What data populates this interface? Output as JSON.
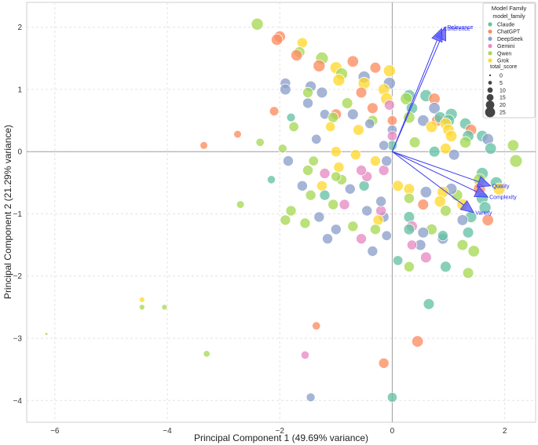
{
  "chart_data": {
    "type": "scatter",
    "xlabel": "Principal Component 1 (49.69% variance)",
    "ylabel": "Principal Component 2 (21.29% variance)",
    "xlim": [
      -6.5,
      2.55
    ],
    "ylim": [
      -4.35,
      2.4
    ],
    "xticks": [
      -6,
      -4,
      -2,
      0,
      2
    ],
    "yticks": [
      -4,
      -3,
      -2,
      -1,
      0,
      1,
      2
    ],
    "grid": true,
    "legend": {
      "title": "Model Family",
      "placement": "top-right",
      "hue_header": "model_family",
      "size_header": "total_score",
      "families": [
        {
          "name": "Claude",
          "color": "#66c2a5"
        },
        {
          "name": "ChatGPT",
          "color": "#fc8d62"
        },
        {
          "name": "DeepSeek",
          "color": "#8da0cb"
        },
        {
          "name": "Gemini",
          "color": "#e78ac3"
        },
        {
          "name": "Qwen",
          "color": "#a6d854"
        },
        {
          "name": "Grok",
          "color": "#ffd92f"
        }
      ],
      "sizes": [
        "0",
        "5",
        "10",
        "15",
        "20",
        "25"
      ]
    },
    "loadings": [
      {
        "name": "Relevance",
        "x": 0.95,
        "y": 2.0
      },
      {
        "name": "Coherence",
        "x": 0.88,
        "y": 1.98
      },
      {
        "name": "Quality",
        "x": 1.75,
        "y": -0.55
      },
      {
        "name": "Complexity",
        "x": 1.7,
        "y": -0.73
      },
      {
        "name": "Variety",
        "x": 1.45,
        "y": -0.98
      }
    ],
    "points": [
      {
        "x": -2.4,
        "y": 2.05,
        "f": "Qwen",
        "s": 18
      },
      {
        "x": -2.0,
        "y": 1.85,
        "f": "ChatGPT",
        "s": 17
      },
      {
        "x": -2.05,
        "y": 1.8,
        "f": "ChatGPT",
        "s": 17
      },
      {
        "x": -1.6,
        "y": 1.75,
        "f": "Grok",
        "s": 15
      },
      {
        "x": -1.65,
        "y": 1.6,
        "f": "Qwen",
        "s": 16
      },
      {
        "x": -1.7,
        "y": 1.55,
        "f": "ChatGPT",
        "s": 17
      },
      {
        "x": -1.25,
        "y": 1.5,
        "f": "Qwen",
        "s": 19
      },
      {
        "x": -1.3,
        "y": 1.38,
        "f": "ChatGPT",
        "s": 18
      },
      {
        "x": -1.0,
        "y": 1.35,
        "f": "Grok",
        "s": 18
      },
      {
        "x": -0.7,
        "y": 1.45,
        "f": "ChatGPT",
        "s": 17
      },
      {
        "x": -0.5,
        "y": 1.2,
        "f": "DeepSeek",
        "s": 18
      },
      {
        "x": -0.9,
        "y": 1.25,
        "f": "Qwen",
        "s": 18
      },
      {
        "x": -0.05,
        "y": 1.3,
        "f": "Grok",
        "s": 18
      },
      {
        "x": -0.3,
        "y": 1.35,
        "f": "ChatGPT",
        "s": 16
      },
      {
        "x": -1.45,
        "y": 1.05,
        "f": "DeepSeek",
        "s": 16
      },
      {
        "x": -1.9,
        "y": 1.1,
        "f": "DeepSeek",
        "s": 15
      },
      {
        "x": -1.5,
        "y": 0.95,
        "f": "Qwen",
        "s": 15
      },
      {
        "x": -1.25,
        "y": 0.95,
        "f": "DeepSeek",
        "s": 16
      },
      {
        "x": -0.95,
        "y": 1.15,
        "f": "Grok",
        "s": 18
      },
      {
        "x": -0.5,
        "y": 1.1,
        "f": "Grok",
        "s": 18
      },
      {
        "x": -0.55,
        "y": 0.95,
        "f": "ChatGPT",
        "s": 16
      },
      {
        "x": -0.05,
        "y": 1.1,
        "f": "DeepSeek",
        "s": 18
      },
      {
        "x": -0.15,
        "y": 1.0,
        "f": "Grok",
        "s": 17
      },
      {
        "x": -0.1,
        "y": 0.85,
        "f": "Grok",
        "s": 18
      },
      {
        "x": -0.05,
        "y": 0.75,
        "f": "Gemini",
        "s": 15
      },
      {
        "x": -1.5,
        "y": 0.78,
        "f": "DeepSeek",
        "s": 15
      },
      {
        "x": -1.9,
        "y": 1.0,
        "f": "DeepSeek",
        "s": 16
      },
      {
        "x": -0.8,
        "y": 0.78,
        "f": "Qwen",
        "s": 16
      },
      {
        "x": -1.0,
        "y": 0.6,
        "f": "ChatGPT",
        "s": 16
      },
      {
        "x": -0.7,
        "y": 0.6,
        "f": "DeepSeek",
        "s": 16
      },
      {
        "x": -0.35,
        "y": 0.7,
        "f": "ChatGPT",
        "s": 16
      },
      {
        "x": -0.35,
        "y": 0.5,
        "f": "Qwen",
        "s": 15
      },
      {
        "x": -0.6,
        "y": 0.35,
        "f": "Grok",
        "s": 16
      },
      {
        "x": -1.8,
        "y": 0.55,
        "f": "Claude",
        "s": 12
      },
      {
        "x": -2.1,
        "y": 0.65,
        "f": "ChatGPT",
        "s": 13
      },
      {
        "x": -1.75,
        "y": 0.4,
        "f": "Qwen",
        "s": 14
      },
      {
        "x": -1.2,
        "y": 0.6,
        "f": "DeepSeek",
        "s": 14
      },
      {
        "x": -1.05,
        "y": 0.55,
        "f": "Qwen",
        "s": 15
      },
      {
        "x": -1.1,
        "y": 0.4,
        "f": "Grok",
        "s": 14
      },
      {
        "x": -0.4,
        "y": 0.45,
        "f": "DeepSeek",
        "s": 14
      },
      {
        "x": 0.0,
        "y": 0.5,
        "f": "ChatGPT",
        "s": 14
      },
      {
        "x": 0.0,
        "y": 0.35,
        "f": "DeepSeek",
        "s": 14
      },
      {
        "x": 0.0,
        "y": 0.25,
        "f": "Gemini",
        "s": 14
      },
      {
        "x": 0.0,
        "y": 0.1,
        "f": "Claude",
        "s": 14
      },
      {
        "x": -0.15,
        "y": 0.1,
        "f": "DeepSeek",
        "s": 14
      },
      {
        "x": 0.3,
        "y": 0.9,
        "f": "Claude",
        "s": 18
      },
      {
        "x": 0.25,
        "y": 0.85,
        "f": "Qwen",
        "s": 18
      },
      {
        "x": 0.35,
        "y": 0.7,
        "f": "Claude",
        "s": 17
      },
      {
        "x": 0.6,
        "y": 0.9,
        "f": "Claude",
        "s": 18
      },
      {
        "x": 0.75,
        "y": 0.85,
        "f": "ChatGPT",
        "s": 17
      },
      {
        "x": 0.3,
        "y": 0.55,
        "f": "Qwen",
        "s": 17
      },
      {
        "x": 0.55,
        "y": 0.5,
        "f": "DeepSeek",
        "s": 17
      },
      {
        "x": 0.75,
        "y": 0.7,
        "f": "DeepSeek",
        "s": 17
      },
      {
        "x": 0.8,
        "y": 0.5,
        "f": "ChatGPT",
        "s": 17
      },
      {
        "x": 0.85,
        "y": 0.55,
        "f": "Claude",
        "s": 17
      },
      {
        "x": 0.7,
        "y": 0.4,
        "f": "Grok",
        "s": 17
      },
      {
        "x": 1.05,
        "y": 0.6,
        "f": "Claude",
        "s": 18
      },
      {
        "x": 1.0,
        "y": 0.5,
        "f": "Claude",
        "s": 18
      },
      {
        "x": 0.95,
        "y": 0.45,
        "f": "Grok",
        "s": 17
      },
      {
        "x": 1.0,
        "y": 0.35,
        "f": "Grok",
        "s": 17
      },
      {
        "x": 1.05,
        "y": 0.25,
        "f": "Grok",
        "s": 17
      },
      {
        "x": 1.3,
        "y": 0.45,
        "f": "Claude",
        "s": 17
      },
      {
        "x": 1.4,
        "y": 0.35,
        "f": "ChatGPT",
        "s": 17
      },
      {
        "x": 1.35,
        "y": 0.25,
        "f": "Claude",
        "s": 17
      },
      {
        "x": 1.3,
        "y": 0.15,
        "f": "Qwen",
        "s": 17
      },
      {
        "x": 1.6,
        "y": 0.25,
        "f": "Claude",
        "s": 17
      },
      {
        "x": 1.7,
        "y": 0.2,
        "f": "DeepSeek",
        "s": 17
      },
      {
        "x": 1.75,
        "y": 0.05,
        "f": "Claude",
        "s": 17
      },
      {
        "x": 0.4,
        "y": 0.15,
        "f": "Qwen",
        "s": 16
      },
      {
        "x": 0.75,
        "y": 0.0,
        "f": "Claude",
        "s": 16
      },
      {
        "x": 0.95,
        "y": 0.05,
        "f": "Grok",
        "s": 16
      },
      {
        "x": 1.1,
        "y": -0.05,
        "f": "DeepSeek",
        "s": 16
      },
      {
        "x": 2.15,
        "y": 0.1,
        "f": "Qwen",
        "s": 17
      },
      {
        "x": 2.2,
        "y": -0.15,
        "f": "Qwen",
        "s": 19
      },
      {
        "x": 1.6,
        "y": -0.35,
        "f": "Claude",
        "s": 18
      },
      {
        "x": 1.55,
        "y": -0.45,
        "f": "Qwen",
        "s": 18
      },
      {
        "x": 1.85,
        "y": -0.5,
        "f": "Claude",
        "s": 18
      },
      {
        "x": 1.9,
        "y": -0.6,
        "f": "Grok",
        "s": 18
      },
      {
        "x": 1.55,
        "y": -0.6,
        "f": "ChatGPT",
        "s": 18
      },
      {
        "x": 1.6,
        "y": -0.75,
        "f": "Claude",
        "s": 18
      },
      {
        "x": 1.65,
        "y": -0.9,
        "f": "Claude",
        "s": 18
      },
      {
        "x": 1.7,
        "y": -1.1,
        "f": "ChatGPT",
        "s": 17
      },
      {
        "x": 1.4,
        "y": -1.05,
        "f": "Claude",
        "s": 17
      },
      {
        "x": 1.25,
        "y": -0.85,
        "f": "Grok",
        "s": 17
      },
      {
        "x": 1.15,
        "y": -0.7,
        "f": "Qwen",
        "s": 17
      },
      {
        "x": 1.05,
        "y": -0.6,
        "f": "DeepSeek",
        "s": 17
      },
      {
        "x": 0.9,
        "y": -0.65,
        "f": "Grok",
        "s": 17
      },
      {
        "x": 0.85,
        "y": -0.8,
        "f": "Grok",
        "s": 17
      },
      {
        "x": 0.6,
        "y": -0.65,
        "f": "DeepSeek",
        "s": 17
      },
      {
        "x": 0.55,
        "y": -0.85,
        "f": "ChatGPT",
        "s": 16
      },
      {
        "x": 0.3,
        "y": -0.6,
        "f": "Grok",
        "s": 16
      },
      {
        "x": 0.1,
        "y": -0.55,
        "f": "Grok",
        "s": 16
      },
      {
        "x": 0.3,
        "y": -0.75,
        "f": "Qwen",
        "s": 15
      },
      {
        "x": 0.95,
        "y": -0.95,
        "f": "Qwen",
        "s": 16
      },
      {
        "x": 1.25,
        "y": -1.1,
        "f": "DeepSeek",
        "s": 16
      },
      {
        "x": 1.35,
        "y": -1.3,
        "f": "Claude",
        "s": 16
      },
      {
        "x": 1.25,
        "y": -1.5,
        "f": "Qwen",
        "s": 16
      },
      {
        "x": 1.45,
        "y": -1.6,
        "f": "Qwen",
        "s": 17
      },
      {
        "x": 0.9,
        "y": -1.4,
        "f": "DeepSeek",
        "s": 16
      },
      {
        "x": 0.7,
        "y": -1.25,
        "f": "Qwen",
        "s": 16
      },
      {
        "x": 0.55,
        "y": -1.3,
        "f": "DeepSeek",
        "s": 16
      },
      {
        "x": 0.3,
        "y": -1.05,
        "f": "Claude",
        "s": 16
      },
      {
        "x": 0.35,
        "y": -1.2,
        "f": "Gemini",
        "s": 16
      },
      {
        "x": 0.3,
        "y": -1.25,
        "f": "Claude",
        "s": 16
      },
      {
        "x": 0.5,
        "y": -1.5,
        "f": "DeepSeek",
        "s": 16
      },
      {
        "x": 0.6,
        "y": -1.7,
        "f": "Gemini",
        "s": 16
      },
      {
        "x": 0.3,
        "y": -1.85,
        "f": "Qwen",
        "s": 15
      },
      {
        "x": 0.9,
        "y": -1.35,
        "f": "Claude",
        "s": 15
      },
      {
        "x": 0.1,
        "y": -1.75,
        "f": "Claude",
        "s": 14
      },
      {
        "x": 0.95,
        "y": -1.85,
        "f": "Claude",
        "s": 16
      },
      {
        "x": 1.35,
        "y": -1.95,
        "f": "Qwen",
        "s": 16
      },
      {
        "x": 0.35,
        "y": -1.5,
        "f": "Gemini",
        "s": 14
      },
      {
        "x": 0.65,
        "y": -2.45,
        "f": "Claude",
        "s": 16
      },
      {
        "x": 0.45,
        "y": -3.05,
        "f": "ChatGPT",
        "s": 17
      },
      {
        "x": -0.15,
        "y": -3.4,
        "f": "ChatGPT",
        "s": 15
      },
      {
        "x": 0.0,
        "y": -3.95,
        "f": "Claude",
        "s": 14
      },
      {
        "x": -0.1,
        "y": -1.35,
        "f": "DeepSeek",
        "s": 14
      },
      {
        "x": -0.15,
        "y": -1.05,
        "f": "DeepSeek",
        "s": 15
      },
      {
        "x": -0.2,
        "y": -0.95,
        "f": "Gemini",
        "s": 15
      },
      {
        "x": -0.2,
        "y": -0.8,
        "f": "DeepSeek",
        "s": 15
      },
      {
        "x": -0.25,
        "y": -1.1,
        "f": "Grok",
        "s": 15
      },
      {
        "x": -0.3,
        "y": -1.25,
        "f": "Qwen",
        "s": 15
      },
      {
        "x": -0.45,
        "y": -0.95,
        "f": "DeepSeek",
        "s": 15
      },
      {
        "x": -0.5,
        "y": -0.55,
        "f": "Claude",
        "s": 15
      },
      {
        "x": -0.45,
        "y": -0.4,
        "f": "Gemini",
        "s": 15
      },
      {
        "x": -0.55,
        "y": -0.3,
        "f": "Gemini",
        "s": 15
      },
      {
        "x": -0.3,
        "y": -0.15,
        "f": "Grok",
        "s": 15
      },
      {
        "x": -0.15,
        "y": -0.3,
        "f": "Gemini",
        "s": 15
      },
      {
        "x": -0.1,
        "y": -0.15,
        "f": "DeepSeek",
        "s": 15
      },
      {
        "x": -0.75,
        "y": -0.6,
        "f": "DeepSeek",
        "s": 15
      },
      {
        "x": -0.95,
        "y": -0.25,
        "f": "Grok",
        "s": 15
      },
      {
        "x": -0.9,
        "y": -0.45,
        "f": "Qwen",
        "s": 15
      },
      {
        "x": -1.2,
        "y": -0.35,
        "f": "Gemini",
        "s": 15
      },
      {
        "x": -1.25,
        "y": -0.55,
        "f": "Grok",
        "s": 15
      },
      {
        "x": -1.2,
        "y": -0.7,
        "f": "Claude",
        "s": 15
      },
      {
        "x": -1.5,
        "y": -0.3,
        "f": "Qwen",
        "s": 15
      },
      {
        "x": -1.6,
        "y": -0.55,
        "f": "DeepSeek",
        "s": 15
      },
      {
        "x": -1.45,
        "y": -0.7,
        "f": "Qwen",
        "s": 15
      },
      {
        "x": -1.85,
        "y": -0.15,
        "f": "DeepSeek",
        "s": 15
      },
      {
        "x": -1.3,
        "y": -1.05,
        "f": "DeepSeek",
        "s": 15
      },
      {
        "x": -1.05,
        "y": -0.85,
        "f": "Qwen",
        "s": 15
      },
      {
        "x": -0.85,
        "y": -0.85,
        "f": "Gemini",
        "s": 15
      },
      {
        "x": -0.7,
        "y": -1.2,
        "f": "Qwen",
        "s": 15
      },
      {
        "x": -0.55,
        "y": -1.4,
        "f": "Gemini",
        "s": 15
      },
      {
        "x": -1.0,
        "y": -1.25,
        "f": "DeepSeek",
        "s": 15
      },
      {
        "x": -1.15,
        "y": -1.4,
        "f": "DeepSeek",
        "s": 15
      },
      {
        "x": -1.55,
        "y": -1.15,
        "f": "Qwen",
        "s": 15
      },
      {
        "x": -1.8,
        "y": -0.95,
        "f": "Qwen",
        "s": 15
      },
      {
        "x": -1.9,
        "y": -1.1,
        "f": "Qwen",
        "s": 15
      },
      {
        "x": -0.35,
        "y": -1.6,
        "f": "DeepSeek",
        "s": 15
      },
      {
        "x": -1.0,
        "y": 0.0,
        "f": "Grok",
        "s": 15
      },
      {
        "x": -0.65,
        "y": -0.05,
        "f": "Grok",
        "s": 15
      },
      {
        "x": -1.4,
        "y": -0.15,
        "f": "Qwen",
        "s": 14
      },
      {
        "x": -1.35,
        "y": 0.2,
        "f": "DeepSeek",
        "s": 14
      },
      {
        "x": -1.0,
        "y": -0.4,
        "f": "Qwen",
        "s": 14
      },
      {
        "x": -1.95,
        "y": 0.05,
        "f": "Qwen",
        "s": 12
      },
      {
        "x": -2.35,
        "y": 0.15,
        "f": "Qwen",
        "s": 11
      },
      {
        "x": -2.15,
        "y": -0.45,
        "f": "Claude",
        "s": 11
      },
      {
        "x": -2.75,
        "y": 0.28,
        "f": "ChatGPT",
        "s": 10
      },
      {
        "x": -3.35,
        "y": 0.1,
        "f": "ChatGPT",
        "s": 10
      },
      {
        "x": -2.7,
        "y": -0.85,
        "f": "Qwen",
        "s": 10
      },
      {
        "x": -4.45,
        "y": -2.38,
        "f": "Grok",
        "s": 6
      },
      {
        "x": -4.45,
        "y": -2.5,
        "f": "Qwen",
        "s": 6
      },
      {
        "x": -4.05,
        "y": -2.5,
        "f": "Qwen",
        "s": 6
      },
      {
        "x": -3.3,
        "y": -3.25,
        "f": "Qwen",
        "s": 8
      },
      {
        "x": -6.15,
        "y": -2.93,
        "f": "Qwen",
        "s": 1
      },
      {
        "x": -1.35,
        "y": -2.8,
        "f": "ChatGPT",
        "s": 11
      },
      {
        "x": -1.55,
        "y": -3.27,
        "f": "Gemini",
        "s": 11
      },
      {
        "x": -1.45,
        "y": -3.95,
        "f": "DeepSeek",
        "s": 12
      }
    ]
  }
}
